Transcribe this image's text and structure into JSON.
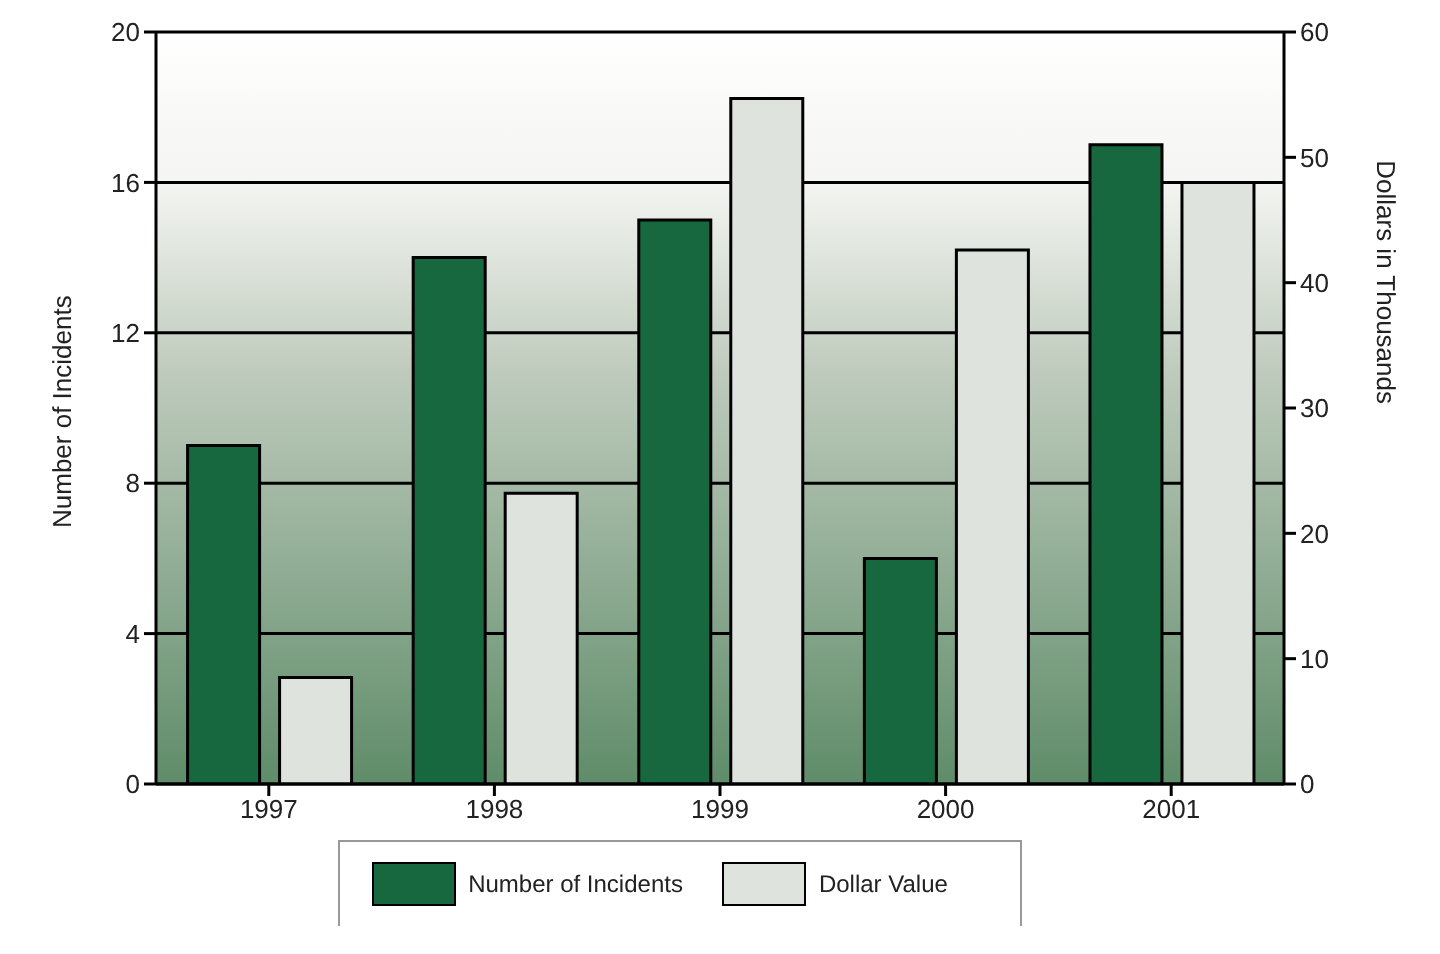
{
  "chart_data": {
    "type": "bar",
    "categories": [
      "1997",
      "1998",
      "1999",
      "2000",
      "2001"
    ],
    "series": [
      {
        "name": "Number of Incidents",
        "color": "#17683e",
        "values": [
          9,
          14,
          15,
          6,
          17
        ]
      },
      {
        "name": "Dollar Value",
        "color": "#dfe3de",
        "values": [
          8.5,
          23.2,
          54.7,
          42.6,
          48
        ],
        "axis": "y2"
      }
    ],
    "ylabel": "Number of Incidents",
    "y2label": "Dollars in Thousands",
    "ylim": [
      0,
      20
    ],
    "yticks": [
      0,
      4,
      8,
      12,
      16,
      20
    ],
    "y2lim": [
      0,
      60
    ],
    "y2ticks": [
      0,
      10,
      20,
      30,
      40,
      50,
      60
    ],
    "grid": "y",
    "legend": "bottom"
  }
}
